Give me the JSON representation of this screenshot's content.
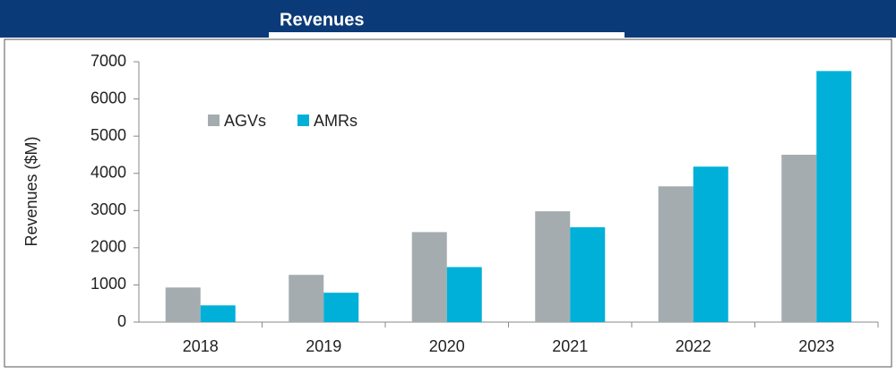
{
  "chart_data": {
    "type": "bar",
    "title": "Revenues",
    "y_label": "Revenues ($M)",
    "categories": [
      "2018",
      "2019",
      "2020",
      "2021",
      "2022",
      "2023"
    ],
    "series": [
      {
        "name": "AGVs",
        "color": "#a5acaf",
        "values": [
          930,
          1270,
          2420,
          2980,
          3650,
          4500
        ]
      },
      {
        "name": "AMRs",
        "color": "#00b0d8",
        "values": [
          450,
          790,
          1480,
          2550,
          4180,
          6750
        ]
      }
    ],
    "ylim": [
      0,
      7000
    ],
    "yticks": [
      0,
      1000,
      2000,
      3000,
      4000,
      5000,
      6000,
      7000
    ],
    "grid": false
  }
}
